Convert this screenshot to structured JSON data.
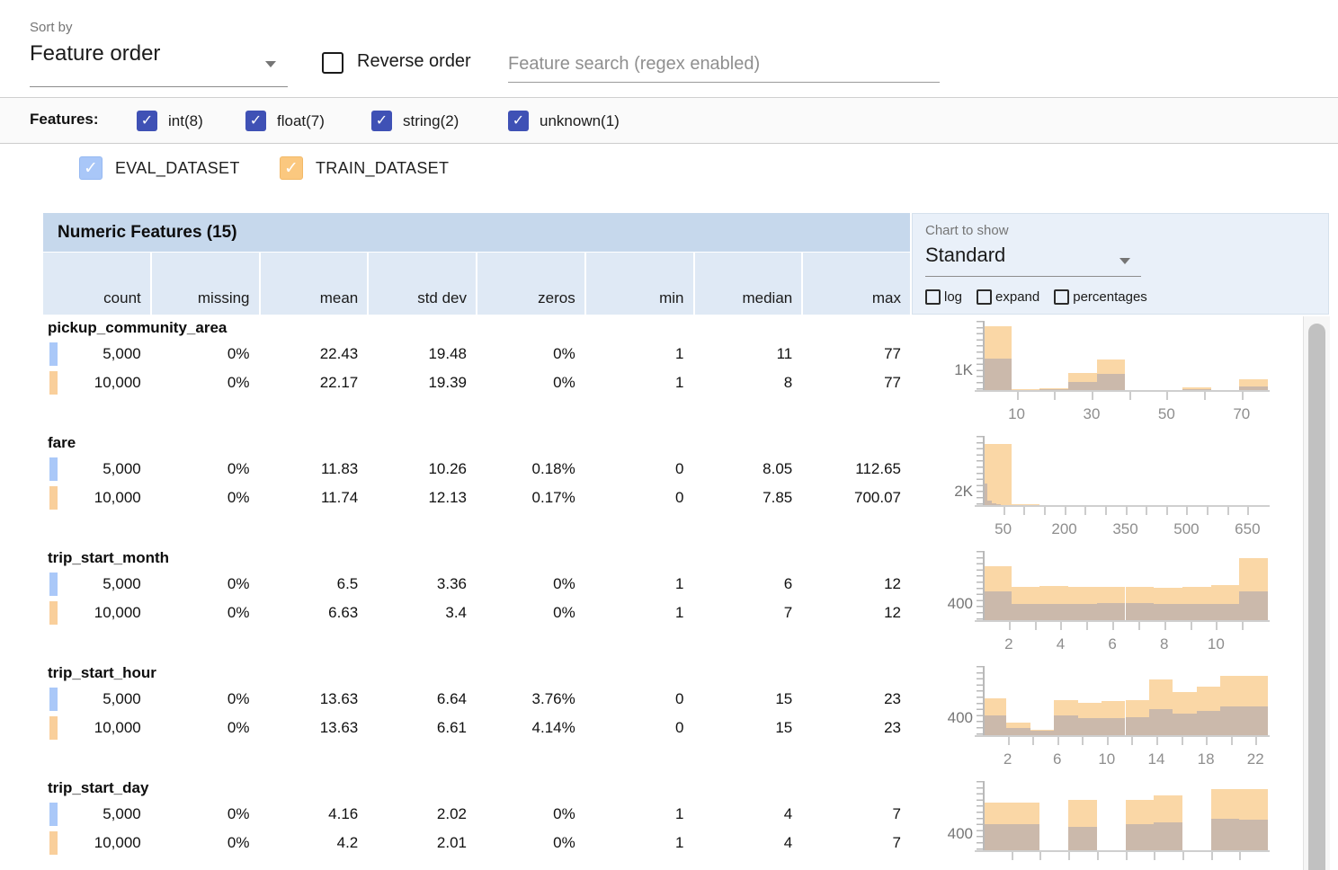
{
  "toolbar": {
    "sort_by_label": "Sort by",
    "sort_value": "Feature order",
    "reverse_order_label": "Reverse order",
    "search_placeholder": "Feature search (regex enabled)"
  },
  "features_filter": {
    "label": "Features:",
    "checkbox_color": "#3f51b5",
    "types": [
      {
        "label": "int(8)",
        "checked": true
      },
      {
        "label": "float(7)",
        "checked": true
      },
      {
        "label": "string(2)",
        "checked": true
      },
      {
        "label": "unknown(1)",
        "checked": true
      }
    ]
  },
  "datasets": [
    {
      "name": "EVAL_DATASET",
      "checked": true,
      "color": "#a9c7f8",
      "marker_color": "#aac8f8"
    },
    {
      "name": "TRAIN_DATASET",
      "checked": true,
      "color": "#fbc87f",
      "marker_color": "#f9cf9b"
    }
  ],
  "table": {
    "title": "Numeric Features (15)",
    "columns": [
      "count",
      "missing",
      "mean",
      "std dev",
      "zeros",
      "min",
      "median",
      "max"
    ]
  },
  "chart_controls": {
    "label": "Chart to show",
    "selected": "Standard",
    "checkboxes": [
      {
        "label": "log",
        "checked": false
      },
      {
        "label": "expand",
        "checked": false
      },
      {
        "label": "percentages",
        "checked": false
      }
    ]
  },
  "features": [
    {
      "name": "pickup_community_area",
      "eval_stats": [
        "5,000",
        "0%",
        "22.43",
        "19.48",
        "0%",
        "1",
        "11",
        "77"
      ],
      "train_stats": [
        "10,000",
        "0%",
        "22.17",
        "19.39",
        "0%",
        "1",
        "8",
        "77"
      ]
    },
    {
      "name": "fare",
      "eval_stats": [
        "5,000",
        "0%",
        "11.83",
        "10.26",
        "0.18%",
        "0",
        "8.05",
        "112.65"
      ],
      "train_stats": [
        "10,000",
        "0%",
        "11.74",
        "12.13",
        "0.17%",
        "0",
        "7.85",
        "700.07"
      ]
    },
    {
      "name": "trip_start_month",
      "eval_stats": [
        "5,000",
        "0%",
        "6.5",
        "3.36",
        "0%",
        "1",
        "6",
        "12"
      ],
      "train_stats": [
        "10,000",
        "0%",
        "6.63",
        "3.4",
        "0%",
        "1",
        "7",
        "12"
      ]
    },
    {
      "name": "trip_start_hour",
      "eval_stats": [
        "5,000",
        "0%",
        "13.63",
        "6.64",
        "3.76%",
        "0",
        "15",
        "23"
      ],
      "train_stats": [
        "10,000",
        "0%",
        "13.63",
        "6.61",
        "4.14%",
        "0",
        "15",
        "23"
      ]
    },
    {
      "name": "trip_start_day",
      "eval_stats": [
        "5,000",
        "0%",
        "4.16",
        "2.02",
        "0%",
        "1",
        "4",
        "7"
      ],
      "train_stats": [
        "10,000",
        "0%",
        "4.2",
        "2.01",
        "0%",
        "1",
        "4",
        "7"
      ]
    }
  ],
  "chart_data": [
    {
      "type": "histogram",
      "feature": "pickup_community_area",
      "x_domain": [
        1,
        77
      ],
      "y_top_value": 3700,
      "y_axis_label": {
        "text": "1K",
        "value": 1000
      },
      "x_ticks": [
        10,
        20,
        30,
        40,
        50,
        60,
        70
      ],
      "x_tick_labels": [
        10,
        30,
        50,
        70
      ],
      "series": [
        {
          "name": "TRAIN_DATASET",
          "color": "#fad7a6",
          "bins": [
            [
              1,
              8.6,
              3400
            ],
            [
              8.6,
              16.2,
              40
            ],
            [
              16.2,
              23.8,
              110
            ],
            [
              23.8,
              31.4,
              900
            ],
            [
              31.4,
              39,
              1650
            ],
            [
              39,
              46.6,
              15
            ],
            [
              46.6,
              54.2,
              10
            ],
            [
              54.2,
              61.8,
              130
            ],
            [
              61.8,
              69.4,
              10
            ],
            [
              69.4,
              77,
              600
            ]
          ]
        },
        {
          "name": "EVAL_DATASET_overlap",
          "color": "#cbb9ab",
          "bins": [
            [
              1,
              8.6,
              1700
            ],
            [
              8.6,
              16.2,
              20
            ],
            [
              16.2,
              23.8,
              55
            ],
            [
              23.8,
              31.4,
              450
            ],
            [
              31.4,
              39,
              850
            ],
            [
              39,
              46.6,
              8
            ],
            [
              46.6,
              54.2,
              5
            ],
            [
              54.2,
              61.8,
              60
            ],
            [
              61.8,
              69.4,
              5
            ],
            [
              69.4,
              77,
              200
            ]
          ]
        }
      ]
    },
    {
      "type": "histogram",
      "feature": "fare",
      "x_domain": [
        0,
        700
      ],
      "y_top_value": 10700,
      "y_axis_label": {
        "text": "2K",
        "value": 2000
      },
      "x_ticks": [
        50,
        100,
        150,
        200,
        250,
        300,
        350,
        400,
        450,
        500,
        550,
        600,
        650
      ],
      "x_tick_labels": [
        50,
        200,
        350,
        500,
        650
      ],
      "series": [
        {
          "name": "TRAIN_DATASET",
          "color": "#fad7a6",
          "bins": [
            [
              0,
              70,
              9400
            ],
            [
              70,
              140,
              150
            ],
            [
              140,
              210,
              40
            ],
            [
              210,
              280,
              10
            ],
            [
              280,
              350,
              5
            ],
            [
              350,
              420,
              3
            ],
            [
              420,
              490,
              2
            ],
            [
              490,
              560,
              2
            ],
            [
              560,
              630,
              1
            ],
            [
              630,
              700,
              1
            ]
          ]
        },
        {
          "name": "EVAL_DATASET_overlap",
          "color": "#cbb9ab",
          "bins": [
            [
              0,
              11.3,
              3300
            ],
            [
              11.3,
              22.6,
              700
            ],
            [
              22.6,
              33.9,
              250
            ],
            [
              33.9,
              45.2,
              100
            ],
            [
              45.2,
              56.5,
              40
            ],
            [
              56.5,
              67.8,
              15
            ],
            [
              67.8,
              79.1,
              8
            ],
            [
              79.1,
              90.4,
              5
            ],
            [
              90.4,
              101.7,
              3
            ],
            [
              101.7,
              113,
              2
            ]
          ]
        }
      ]
    },
    {
      "type": "histogram",
      "feature": "trip_start_month",
      "x_domain": [
        1,
        12
      ],
      "y_top_value": 1800,
      "y_axis_label": {
        "text": "400",
        "value": 400
      },
      "x_ticks": [
        2,
        3,
        4,
        5,
        6,
        7,
        8,
        9,
        10,
        11
      ],
      "x_tick_labels": [
        2,
        4,
        6,
        8,
        10
      ],
      "series": [
        {
          "name": "TRAIN_DATASET",
          "color": "#fad7a6",
          "bins": [
            [
              1,
              2.1,
              1400
            ],
            [
              2.1,
              3.2,
              870
            ],
            [
              3.2,
              4.3,
              880
            ],
            [
              4.3,
              5.4,
              875
            ],
            [
              5.4,
              6.5,
              870
            ],
            [
              6.5,
              7.6,
              860
            ],
            [
              7.6,
              8.7,
              850
            ],
            [
              8.7,
              9.8,
              865
            ],
            [
              9.8,
              10.9,
              920
            ],
            [
              10.9,
              12,
              1620
            ]
          ]
        },
        {
          "name": "EVAL_DATASET_overlap",
          "color": "#cbb9ab",
          "bins": [
            [
              1,
              2.1,
              750
            ],
            [
              2.1,
              3.2,
              420
            ],
            [
              3.2,
              4.3,
              425
            ],
            [
              4.3,
              5.4,
              430
            ],
            [
              5.4,
              6.5,
              440
            ],
            [
              6.5,
              7.6,
              435
            ],
            [
              7.6,
              8.7,
              420
            ],
            [
              8.7,
              9.8,
              415
            ],
            [
              9.8,
              10.9,
              430
            ],
            [
              10.9,
              12,
              760
            ]
          ]
        }
      ]
    },
    {
      "type": "histogram",
      "feature": "trip_start_hour",
      "x_domain": [
        0,
        23
      ],
      "y_top_value": 1700,
      "y_axis_label": {
        "text": "400",
        "value": 400
      },
      "x_ticks": [
        2,
        4,
        6,
        8,
        10,
        12,
        14,
        16,
        18,
        20,
        22
      ],
      "x_tick_labels": [
        2,
        6,
        10,
        14,
        18,
        22
      ],
      "series": [
        {
          "name": "TRAIN_DATASET",
          "color": "#fad7a6",
          "bins": [
            [
              0,
              1.92,
              900
            ],
            [
              1.92,
              3.83,
              310
            ],
            [
              3.83,
              5.75,
              140
            ],
            [
              5.75,
              7.67,
              870
            ],
            [
              7.67,
              9.58,
              790
            ],
            [
              9.58,
              11.5,
              830
            ],
            [
              11.5,
              13.42,
              860
            ],
            [
              13.42,
              15.33,
              1380
            ],
            [
              15.33,
              17.25,
              1070
            ],
            [
              17.25,
              19.17,
              1200
            ],
            [
              19.17,
              21.08,
              1450
            ],
            [
              21.08,
              23,
              1450
            ]
          ]
        },
        {
          "name": "EVAL_DATASET_overlap",
          "color": "#cbb9ab",
          "bins": [
            [
              0,
              1.92,
              490
            ],
            [
              1.92,
              3.83,
              170
            ],
            [
              3.83,
              5.75,
              120
            ],
            [
              5.75,
              7.67,
              480
            ],
            [
              7.67,
              9.58,
              430
            ],
            [
              9.58,
              11.5,
              430
            ],
            [
              11.5,
              13.42,
              450
            ],
            [
              13.42,
              15.33,
              640
            ],
            [
              15.33,
              17.25,
              520
            ],
            [
              17.25,
              19.17,
              590
            ],
            [
              19.17,
              21.08,
              700
            ],
            [
              21.08,
              23,
              700
            ]
          ]
        }
      ]
    },
    {
      "type": "histogram",
      "feature": "trip_start_day",
      "x_domain": [
        1,
        7
      ],
      "y_top_value": 1800,
      "y_axis_label": {
        "text": "400",
        "value": 400
      },
      "x_ticks": [
        1.6,
        2.2,
        2.8,
        3.4,
        4,
        4.6,
        5.2,
        5.8,
        6.4
      ],
      "x_tick_labels": [],
      "series": [
        {
          "name": "TRAIN_DATASET",
          "color": "#fad7a6",
          "bins": [
            [
              1,
              1.6,
              1250
            ],
            [
              1.6,
              2.2,
              1250
            ],
            [
              2.8,
              3.4,
              1300
            ],
            [
              4,
              4.6,
              1320
            ],
            [
              4.6,
              5.2,
              1430
            ],
            [
              5.8,
              6.4,
              1600
            ],
            [
              6.4,
              7,
              1590
            ]
          ]
        },
        {
          "name": "EVAL_DATASET_overlap",
          "color": "#cbb9ab",
          "bins": [
            [
              1,
              1.6,
              680
            ],
            [
              1.6,
              2.2,
              670
            ],
            [
              2.8,
              3.4,
              610
            ],
            [
              4,
              4.6,
              680
            ],
            [
              4.6,
              5.2,
              730
            ],
            [
              5.8,
              6.4,
              820
            ],
            [
              6.4,
              7,
              800
            ]
          ]
        }
      ]
    }
  ]
}
